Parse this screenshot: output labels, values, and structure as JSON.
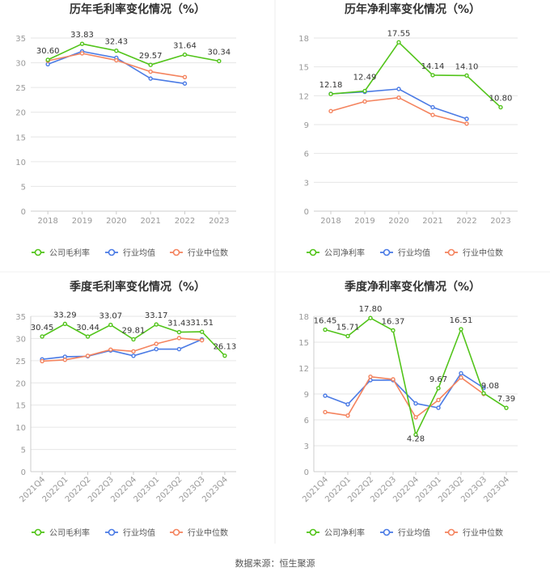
{
  "colors": {
    "company": "#52c41a",
    "avg": "#4b7be5",
    "median": "#f4845f",
    "grid": "#e6e6e6",
    "axis": "#999999",
    "text": "#333333"
  },
  "legend_labels": [
    "公司净利率",
    "行业均值",
    "行业中位数"
  ],
  "source": "数据来源：恒生聚源",
  "chart_data": [
    {
      "type": "line",
      "title": "历年毛利率变化情况（%）",
      "categories": [
        "2018",
        "2019",
        "2020",
        "2021",
        "2022",
        "2023"
      ],
      "ylim": [
        0,
        35
      ],
      "yticks": [
        0,
        5,
        10,
        15,
        20,
        25,
        30,
        35
      ],
      "legend": [
        "公司毛利率",
        "行业均值",
        "行业中位数"
      ],
      "series": [
        {
          "name": "公司毛利率",
          "values": [
            30.6,
            33.83,
            32.43,
            29.57,
            31.64,
            30.34
          ],
          "labels": [
            "30.60",
            "33.83",
            "32.43",
            "29.57",
            "31.64",
            "30.34"
          ]
        },
        {
          "name": "行业均值",
          "values": [
            29.7,
            32.3,
            31.0,
            26.8,
            25.8,
            null
          ]
        },
        {
          "name": "行业中位数",
          "values": [
            30.4,
            31.9,
            30.5,
            28.2,
            27.1,
            null
          ]
        }
      ]
    },
    {
      "type": "line",
      "title": "历年净利率变化情况（%）",
      "categories": [
        "2018",
        "2019",
        "2020",
        "2021",
        "2022",
        "2023"
      ],
      "ylim": [
        0,
        18
      ],
      "yticks": [
        0,
        3,
        6,
        9,
        12,
        15,
        18
      ],
      "legend": [
        "公司净利率",
        "行业均值",
        "行业中位数"
      ],
      "series": [
        {
          "name": "公司净利率",
          "values": [
            12.18,
            12.49,
            17.55,
            14.14,
            14.1,
            10.8
          ],
          "labels": [
            "12.18",
            "12.49",
            "17.55",
            "14.14",
            "14.10",
            "10.80"
          ]
        },
        {
          "name": "行业均值",
          "values": [
            12.2,
            12.4,
            12.7,
            10.8,
            9.6,
            null
          ]
        },
        {
          "name": "行业中位数",
          "values": [
            10.4,
            11.4,
            11.8,
            10.0,
            9.1,
            null
          ]
        }
      ]
    },
    {
      "type": "line",
      "title": "季度毛利率变化情况（%）",
      "categories": [
        "2021Q4",
        "2022Q1",
        "2022Q2",
        "2022Q3",
        "2022Q4",
        "2023Q1",
        "2023Q2",
        "2023Q3",
        "2023Q4"
      ],
      "ylim": [
        0,
        35
      ],
      "yticks": [
        0,
        5,
        10,
        15,
        20,
        25,
        30,
        35
      ],
      "legend": [
        "公司毛利率",
        "行业均值",
        "行业中位数"
      ],
      "series": [
        {
          "name": "公司毛利率",
          "values": [
            30.45,
            33.29,
            30.44,
            33.07,
            29.81,
            33.17,
            31.43,
            31.51,
            26.13
          ],
          "labels": [
            "30.45",
            "33.29",
            "30.44",
            "33.07",
            "29.81",
            "33.17",
            "31.43",
            "31.51",
            "26.13"
          ]
        },
        {
          "name": "行业均值",
          "values": [
            25.3,
            25.9,
            26.0,
            27.3,
            26.1,
            27.6,
            27.6,
            29.8,
            null
          ]
        },
        {
          "name": "行业中位数",
          "values": [
            24.9,
            25.2,
            26.1,
            27.5,
            27.1,
            28.8,
            30.1,
            29.6,
            null
          ]
        }
      ]
    },
    {
      "type": "line",
      "title": "季度净利率变化情况（%）",
      "categories": [
        "2021Q4",
        "2022Q1",
        "2022Q2",
        "2022Q3",
        "2022Q4",
        "2023Q1",
        "2023Q2",
        "2023Q3",
        "2023Q4"
      ],
      "ylim": [
        0,
        18
      ],
      "yticks": [
        0,
        3,
        6,
        9,
        12,
        15,
        18
      ],
      "legend": [
        "公司净利率",
        "行业均值",
        "行业中位数"
      ],
      "series": [
        {
          "name": "公司净利率",
          "values": [
            16.45,
            15.71,
            17.8,
            16.37,
            4.28,
            9.67,
            16.51,
            9.08,
            7.39
          ],
          "labels": [
            "16.45",
            "15.71",
            "17.80",
            "16.37",
            "4.28",
            "9.67",
            "16.51",
            "9.08",
            "7.39"
          ]
        },
        {
          "name": "行业均值",
          "values": [
            8.8,
            7.8,
            10.6,
            10.6,
            7.9,
            7.4,
            11.4,
            9.7,
            null
          ]
        },
        {
          "name": "行业中位数",
          "values": [
            6.9,
            6.5,
            11.0,
            10.7,
            6.3,
            8.3,
            10.9,
            9.0,
            null
          ]
        }
      ]
    }
  ]
}
